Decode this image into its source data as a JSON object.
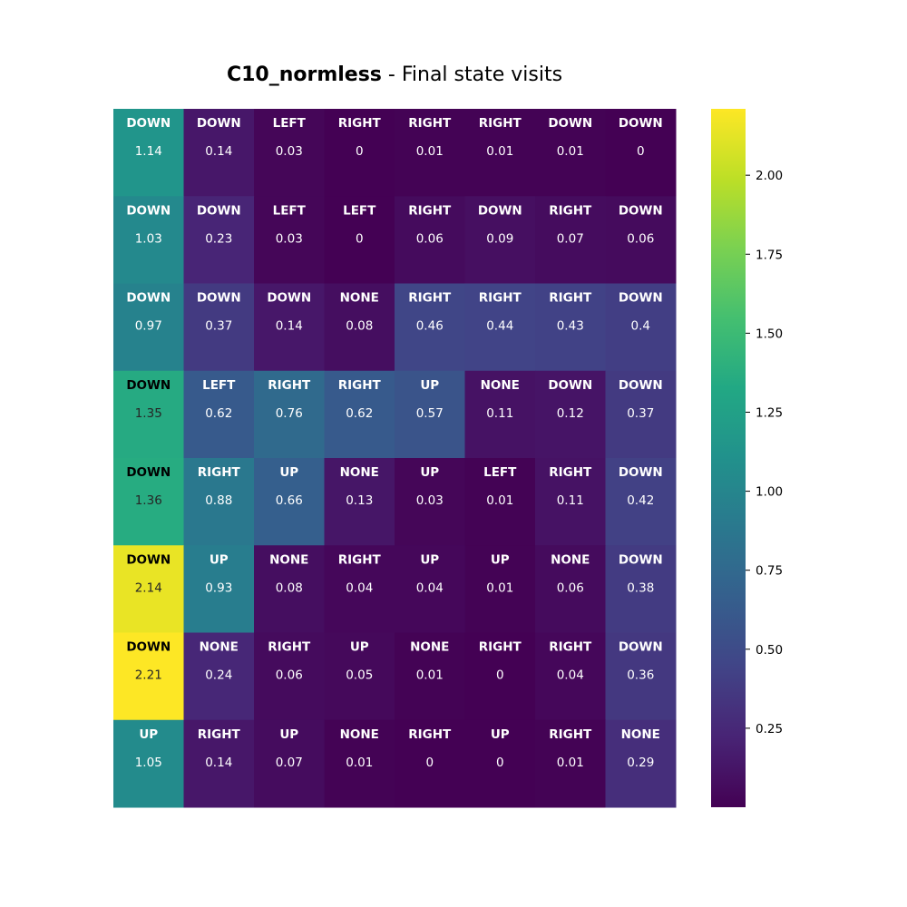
{
  "chart_data": {
    "type": "heatmap",
    "title_bold": "C10_normless",
    "title_rest": " - Final state visits",
    "rows": 8,
    "cols": 8,
    "actions": [
      [
        "DOWN",
        "DOWN",
        "LEFT",
        "RIGHT",
        "RIGHT",
        "RIGHT",
        "DOWN",
        "DOWN"
      ],
      [
        "DOWN",
        "DOWN",
        "LEFT",
        "LEFT",
        "RIGHT",
        "DOWN",
        "RIGHT",
        "DOWN"
      ],
      [
        "DOWN",
        "DOWN",
        "DOWN",
        "NONE",
        "RIGHT",
        "RIGHT",
        "RIGHT",
        "DOWN"
      ],
      [
        "DOWN",
        "LEFT",
        "RIGHT",
        "RIGHT",
        "UP",
        "NONE",
        "DOWN",
        "DOWN"
      ],
      [
        "DOWN",
        "RIGHT",
        "UP",
        "NONE",
        "UP",
        "LEFT",
        "RIGHT",
        "DOWN"
      ],
      [
        "DOWN",
        "UP",
        "NONE",
        "RIGHT",
        "UP",
        "UP",
        "NONE",
        "DOWN"
      ],
      [
        "DOWN",
        "NONE",
        "RIGHT",
        "UP",
        "NONE",
        "RIGHT",
        "RIGHT",
        "DOWN"
      ],
      [
        "UP",
        "RIGHT",
        "UP",
        "NONE",
        "RIGHT",
        "UP",
        "RIGHT",
        "NONE"
      ]
    ],
    "values": [
      [
        1.14,
        0.14,
        0.03,
        0,
        0.01,
        0.01,
        0.01,
        0
      ],
      [
        1.03,
        0.23,
        0.03,
        0,
        0.06,
        0.09,
        0.07,
        0.06
      ],
      [
        0.97,
        0.37,
        0.14,
        0.08,
        0.46,
        0.44,
        0.43,
        0.4
      ],
      [
        1.35,
        0.62,
        0.76,
        0.62,
        0.57,
        0.11,
        0.12,
        0.37
      ],
      [
        1.36,
        0.88,
        0.66,
        0.13,
        0.03,
        0.01,
        0.11,
        0.42
      ],
      [
        2.14,
        0.93,
        0.08,
        0.04,
        0.04,
        0.01,
        0.06,
        0.38
      ],
      [
        2.21,
        0.24,
        0.06,
        0.05,
        0.01,
        0,
        0.04,
        0.36
      ],
      [
        1.05,
        0.14,
        0.07,
        0.01,
        0,
        0,
        0.01,
        0.29
      ]
    ],
    "color_range": [
      0,
      2.21
    ],
    "colormap": "viridis",
    "colorbar_ticks": [
      "0.25",
      "0.50",
      "0.75",
      "1.00",
      "1.25",
      "1.50",
      "1.75",
      "2.00"
    ],
    "colorbar_tick_values": [
      0.25,
      0.5,
      0.75,
      1.0,
      1.25,
      1.5,
      1.75,
      2.0
    ]
  }
}
